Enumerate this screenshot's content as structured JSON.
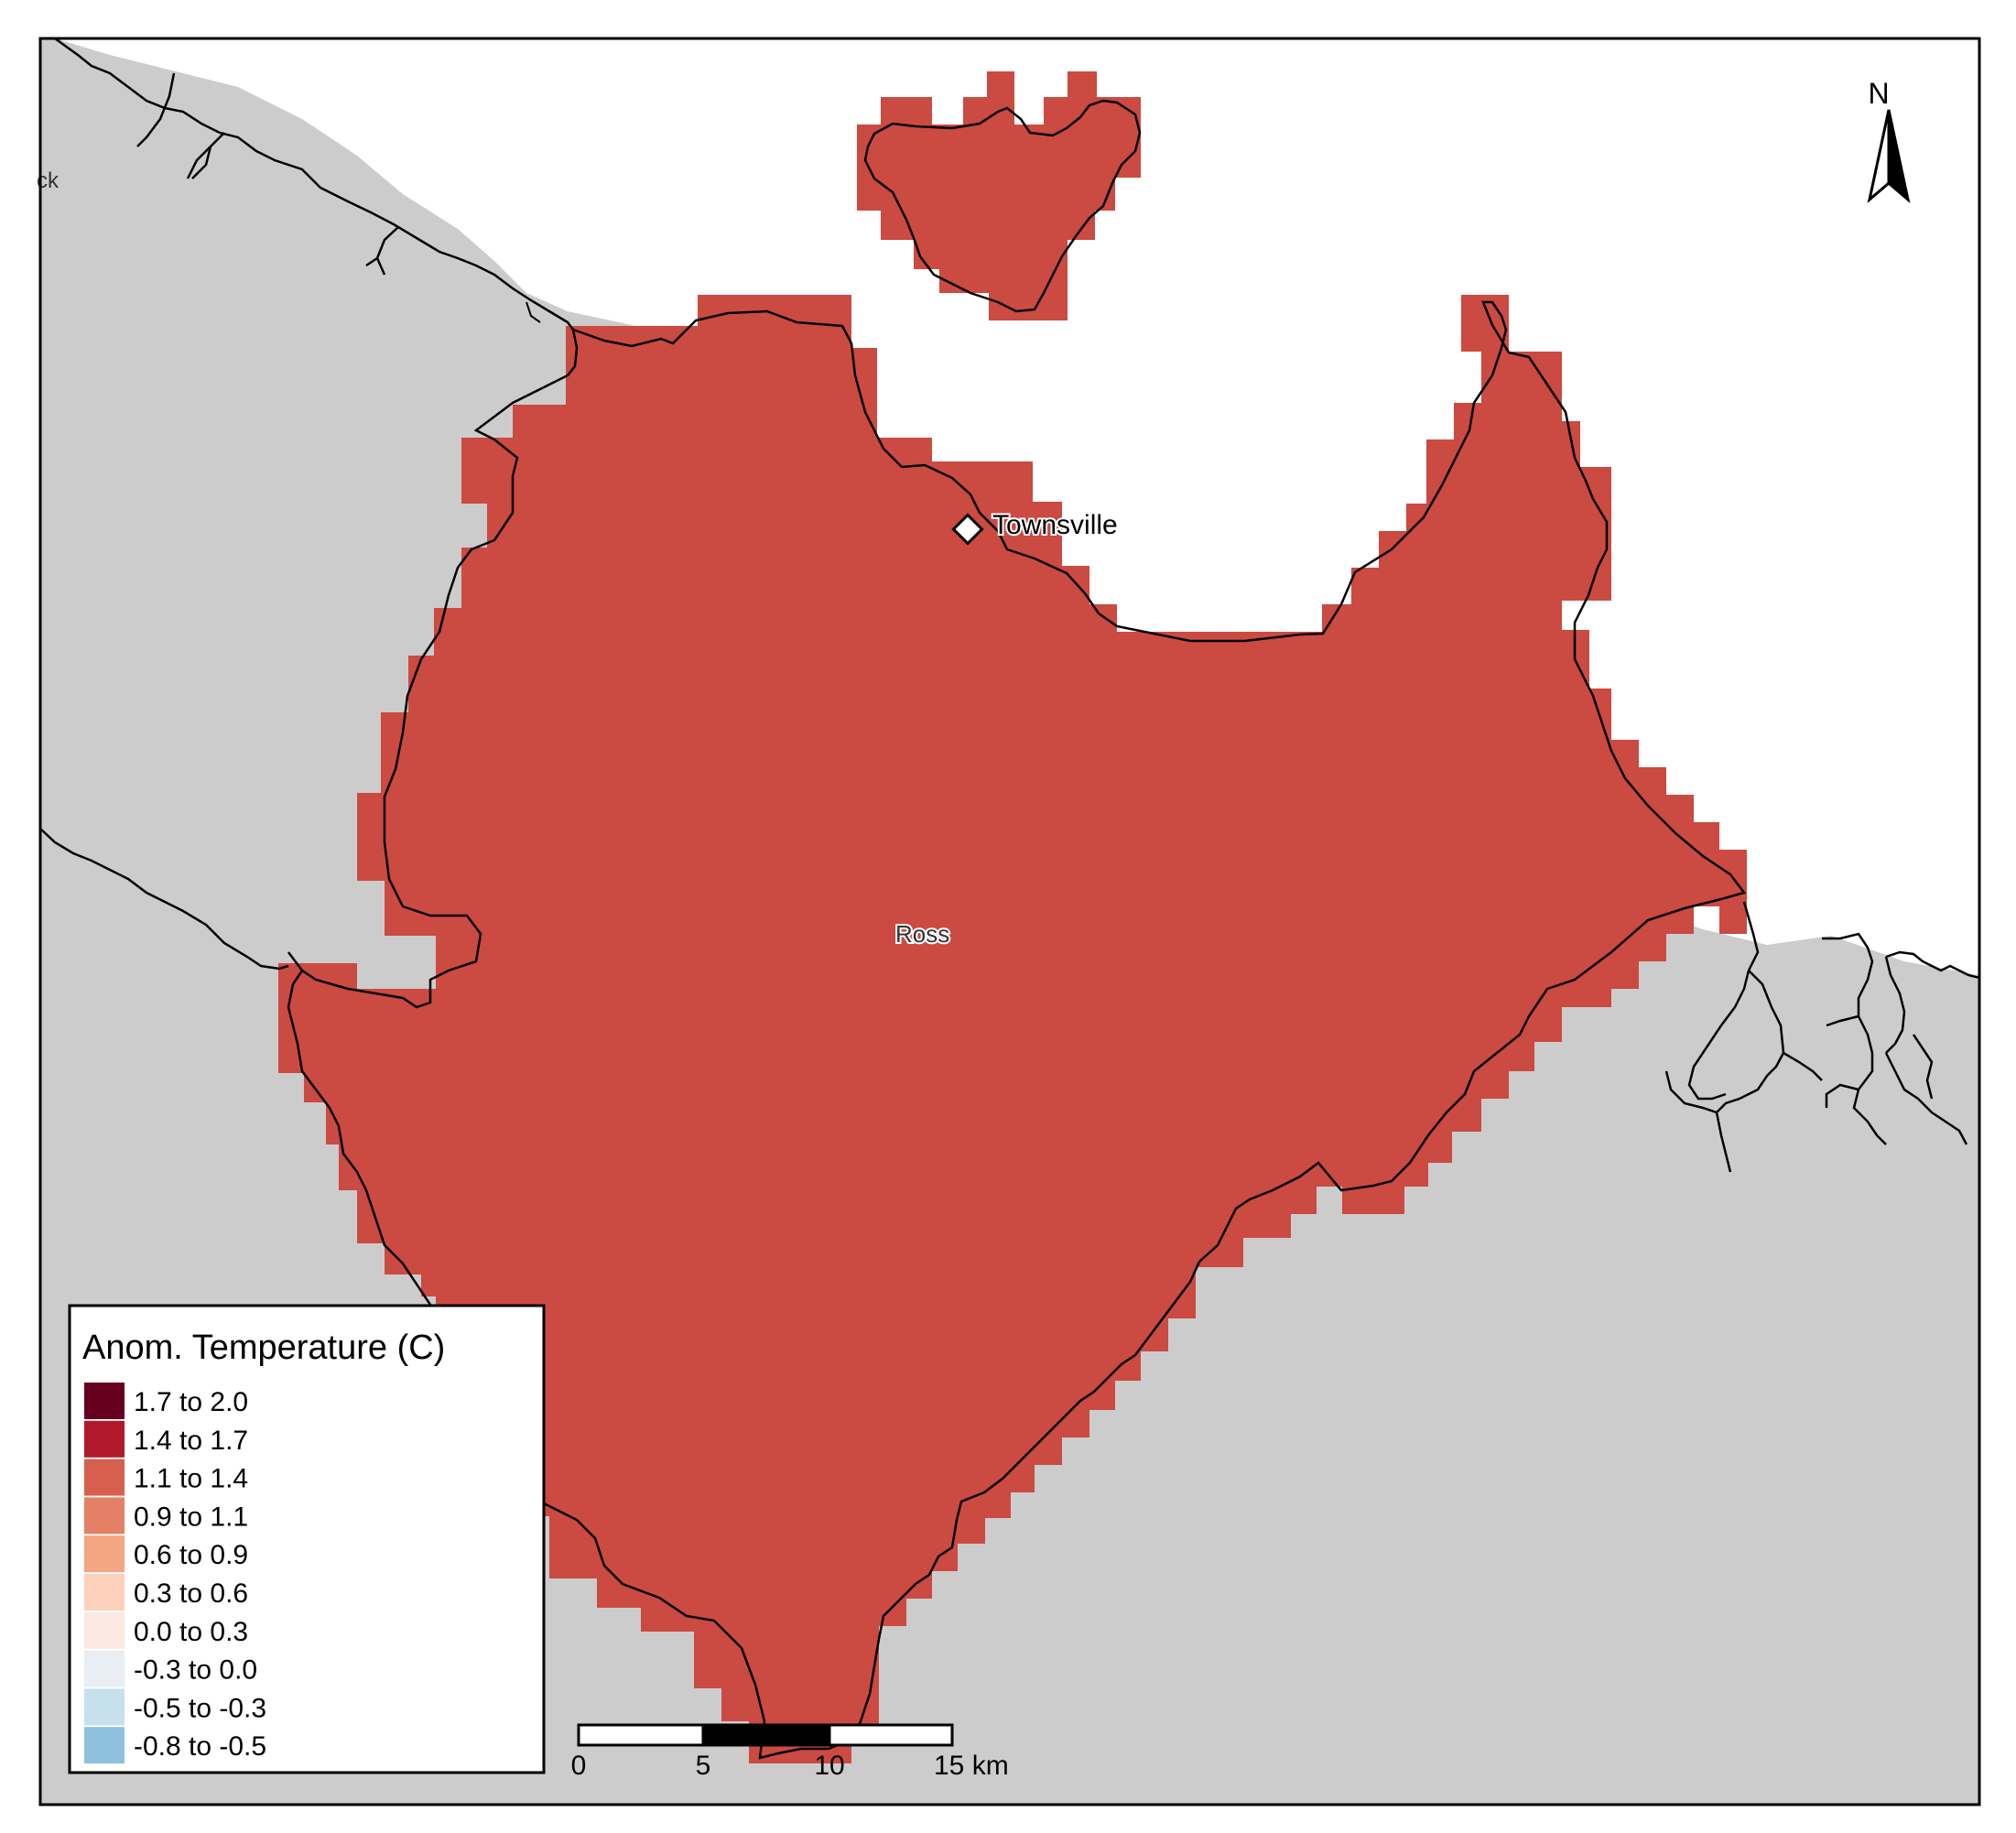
{
  "map": {
    "region_label": "Ross",
    "city_label": "Townsville",
    "edge_label_fragment": "ck",
    "north_label": "N",
    "region_color": "#cb4a42",
    "land_color": "#cccccc",
    "water_color": "#ffffff",
    "outline_color": "#000000"
  },
  "legend": {
    "title": "Anom. Temperature (C)",
    "items": [
      {
        "label": "1.7 to 2.0",
        "color": "#67001f"
      },
      {
        "label": "1.4 to 1.7",
        "color": "#b2182b"
      },
      {
        "label": "1.1 to 1.4",
        "color": "#d6604d"
      },
      {
        "label": "0.9 to 1.1",
        "color": "#e48066"
      },
      {
        "label": "0.6 to 0.9",
        "color": "#f4a582"
      },
      {
        "label": "0.3 to 0.6",
        "color": "#fdd0bc"
      },
      {
        "label": "0.0 to 0.3",
        "color": "#fbe9e2"
      },
      {
        "label": "-0.3 to 0.0",
        "color": "#e8eef3"
      },
      {
        "label": "-0.5 to -0.3",
        "color": "#c6e0ec"
      },
      {
        "label": "-0.8 to -0.5",
        "color": "#8fc1de"
      }
    ]
  },
  "scalebar": {
    "ticks": [
      "0",
      "5",
      "10",
      "15 km"
    ]
  }
}
